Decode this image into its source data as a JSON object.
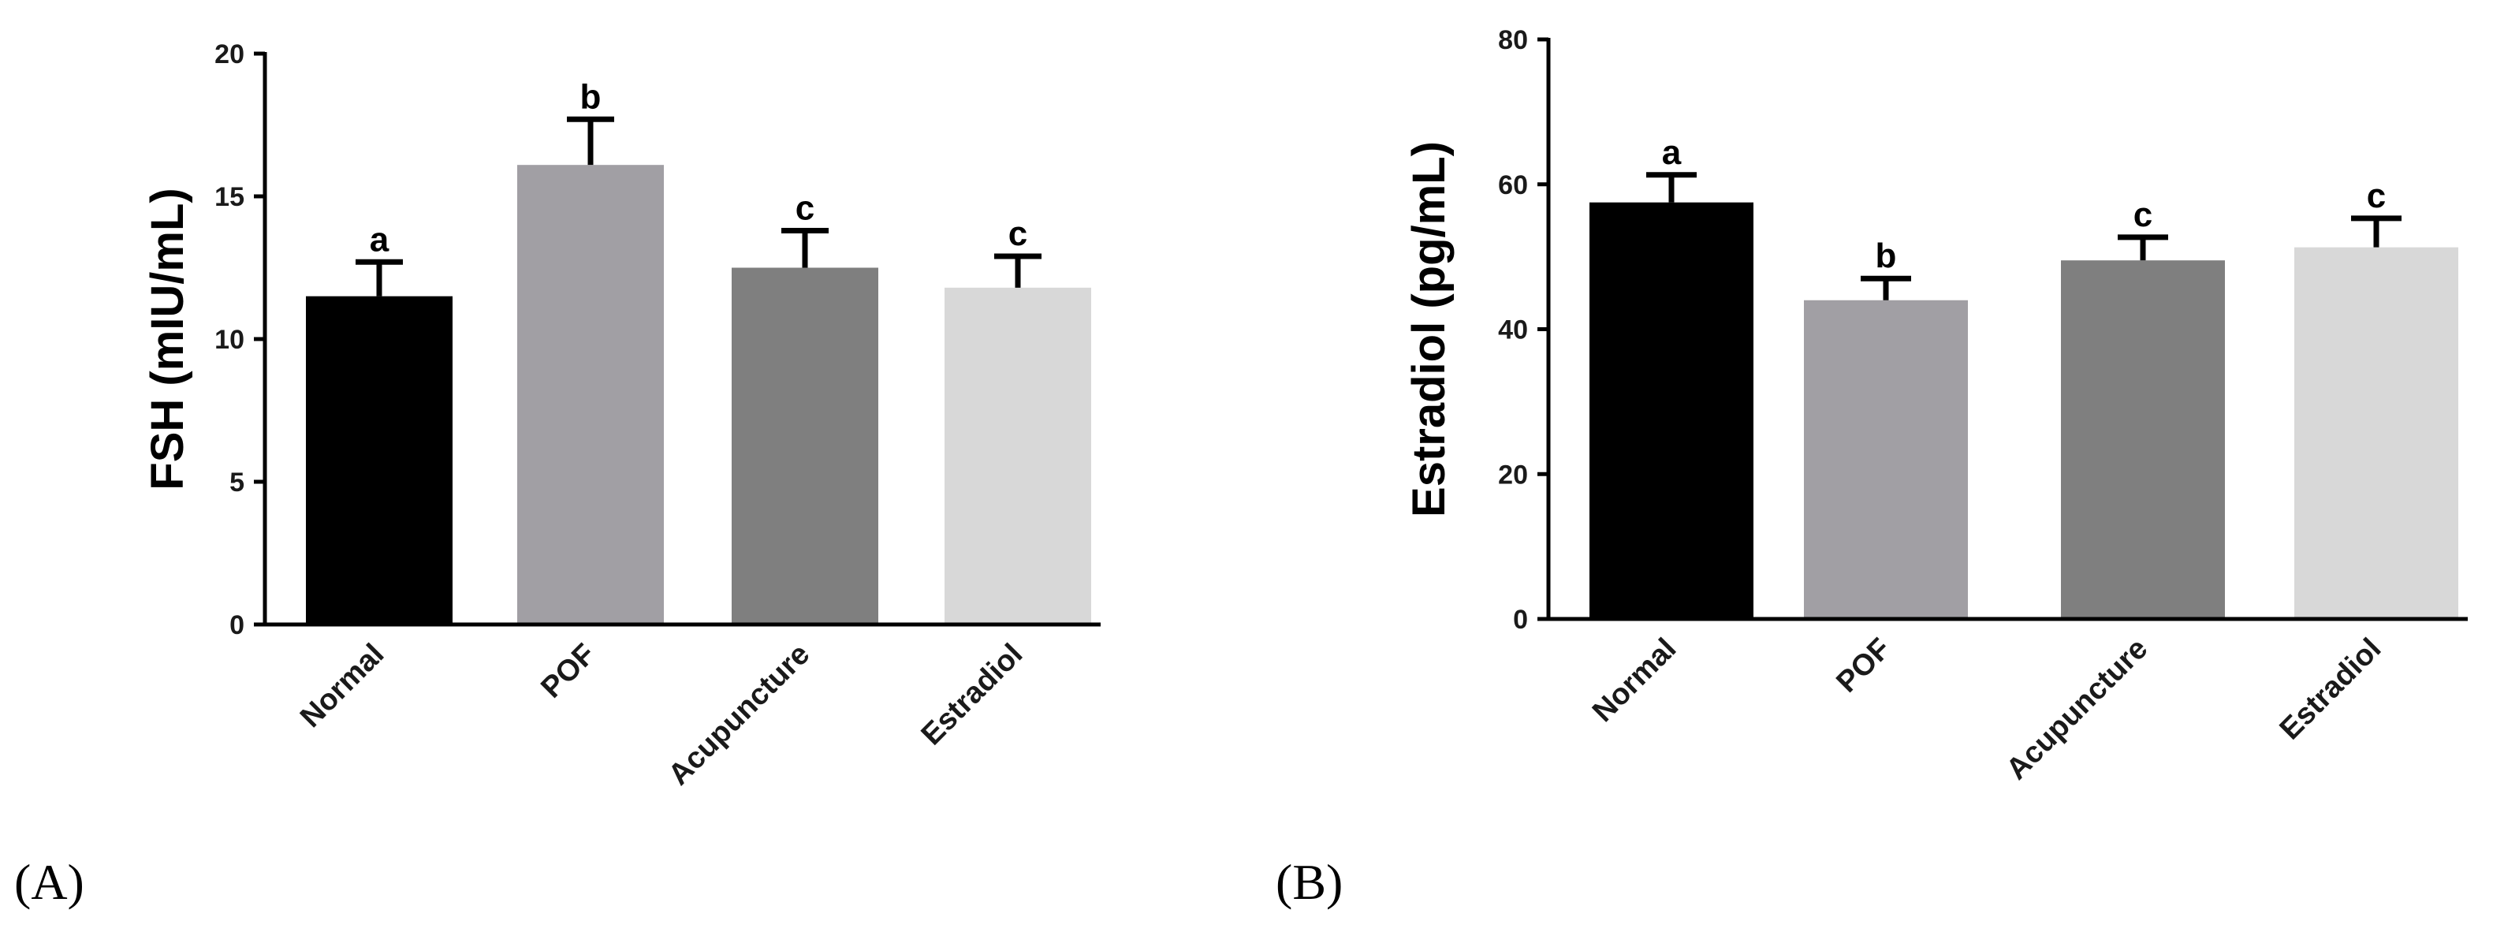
{
  "chart_data": [
    {
      "panel_label": "(A)",
      "type": "bar",
      "title": "",
      "xlabel": "",
      "ylabel": "FSH (mIU/mL)",
      "ylim": [
        0,
        20
      ],
      "yticks": [
        0,
        5,
        10,
        15,
        20
      ],
      "categories": [
        "Normal",
        "POF",
        "Acupuncture",
        "Estradiol"
      ],
      "values": [
        11.5,
        16.1,
        12.5,
        11.8
      ],
      "errors": [
        1.2,
        1.6,
        1.3,
        1.1
      ],
      "significance": [
        "a",
        "b",
        "c",
        "c"
      ],
      "colors": [
        "#000000",
        "#a19fa4",
        "#7f7f7f",
        "#d8d8d8"
      ]
    },
    {
      "panel_label": "(B)",
      "type": "bar",
      "title": "",
      "xlabel": "",
      "ylabel": "Estradiol (pg/mL)",
      "ylim": [
        0,
        80
      ],
      "yticks": [
        0,
        20,
        40,
        60,
        80
      ],
      "categories": [
        "Normal",
        "POF",
        "Acupuncture",
        "Estradiol"
      ],
      "values": [
        57.5,
        44,
        49.5,
        51.3
      ],
      "errors": [
        3.8,
        3,
        3.2,
        4
      ],
      "significance": [
        "a",
        "b",
        "c",
        "c"
      ],
      "colors": [
        "#000000",
        "#a19fa4",
        "#7f7f7f",
        "#d8d8d8"
      ]
    }
  ]
}
